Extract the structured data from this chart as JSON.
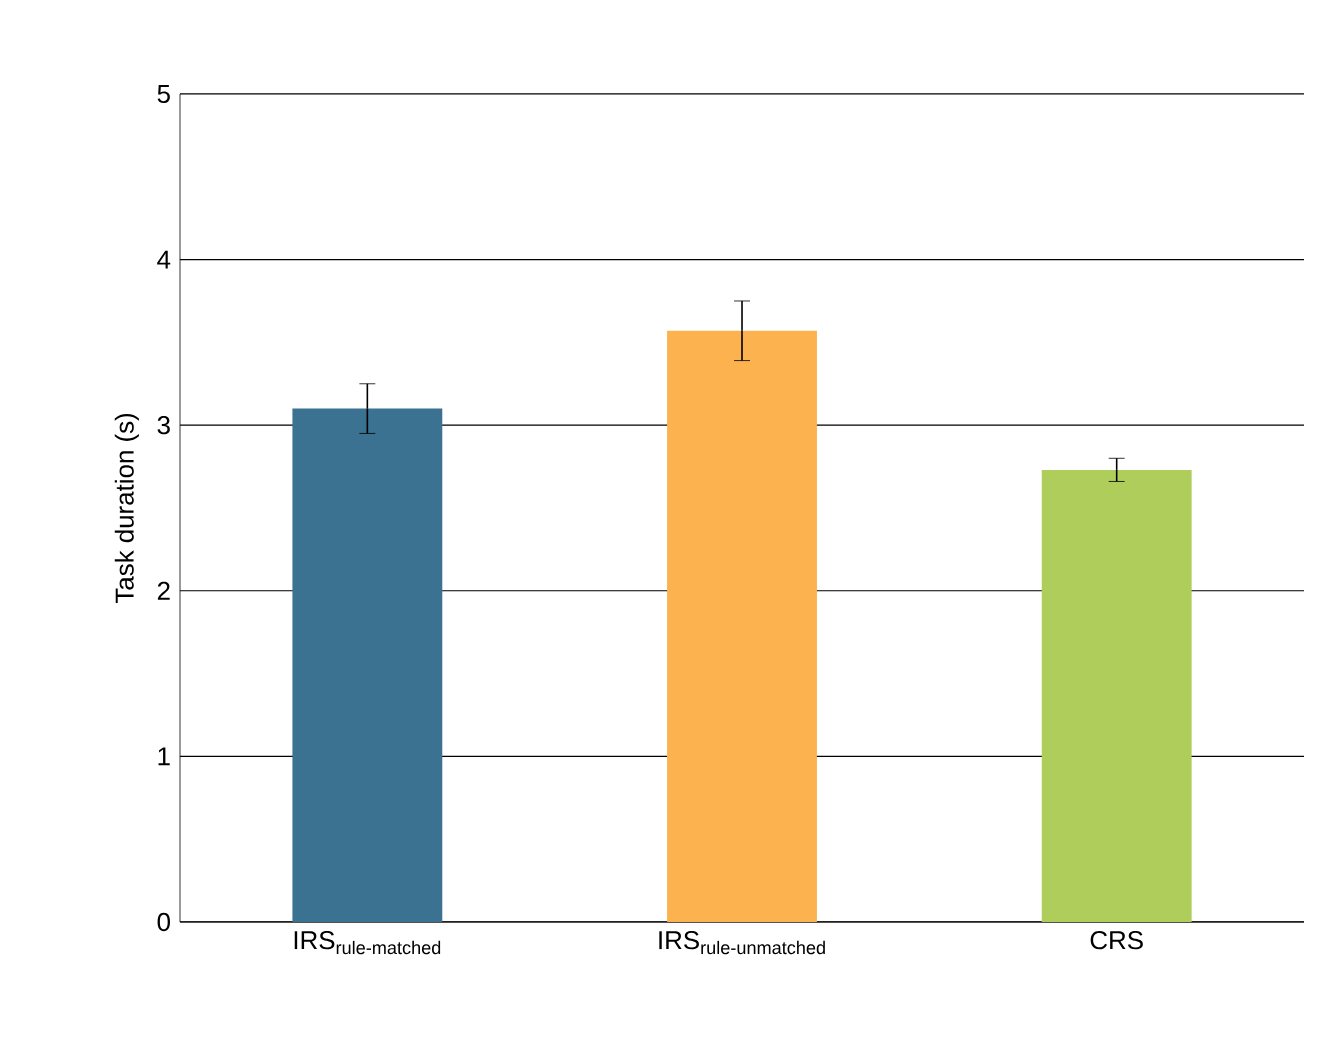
{
  "chart_data": {
    "type": "bar",
    "ylabel": "Task duration (s)",
    "categories": [
      "\\text{IRS}_{\\text{rule-matched}}",
      "\\text{IRS}_{\\text{rule-unmatched}}",
      "\\text{CRS}"
    ],
    "values": [
      3.1,
      3.57,
      2.73
    ],
    "colors": [
      "#3b7191",
      "#fbb24f",
      "#aecd5a"
    ],
    "errors": [
      0.15,
      0.18,
      0.07
    ],
    "ylim": [
      0,
      5
    ],
    "yticks": [
      0,
      1,
      2,
      3,
      4,
      5
    ],
    "grid": "y"
  }
}
